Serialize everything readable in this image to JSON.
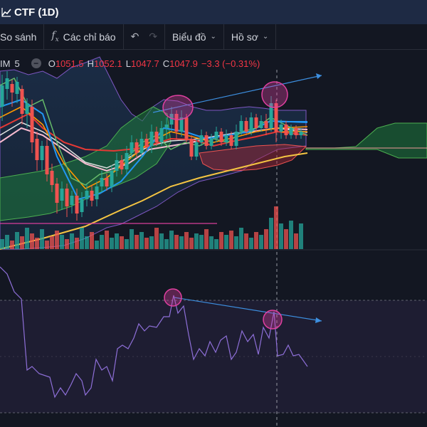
{
  "window": {
    "title": "CTF (1D)"
  },
  "toolbar": {
    "compare": "So sánh",
    "indicators": "Các chỉ báo",
    "chart_type": "Biểu đồ",
    "profile": "Hồ sơ"
  },
  "legend": {
    "symbol_tail": "IM",
    "interval": "5",
    "o_label": "O",
    "o": "1051.5",
    "h_label": "H",
    "h": "1052.1",
    "l_label": "L",
    "l": "1047.7",
    "c_label": "C",
    "c": "1047.9",
    "change": "−3.3 (−0.31%)"
  },
  "colors": {
    "background": "#131722",
    "up": "#26a69a",
    "down": "#ef5350",
    "divergence_line": "#3d8fe0",
    "divergence_marker": "#e040a0",
    "rsi_line": "#7e57c2"
  },
  "icons": [
    "chart-icon",
    "plus-icon",
    "fx-icon",
    "undo-icon",
    "redo-icon",
    "chevron-down-icon",
    "minus-icon"
  ]
}
